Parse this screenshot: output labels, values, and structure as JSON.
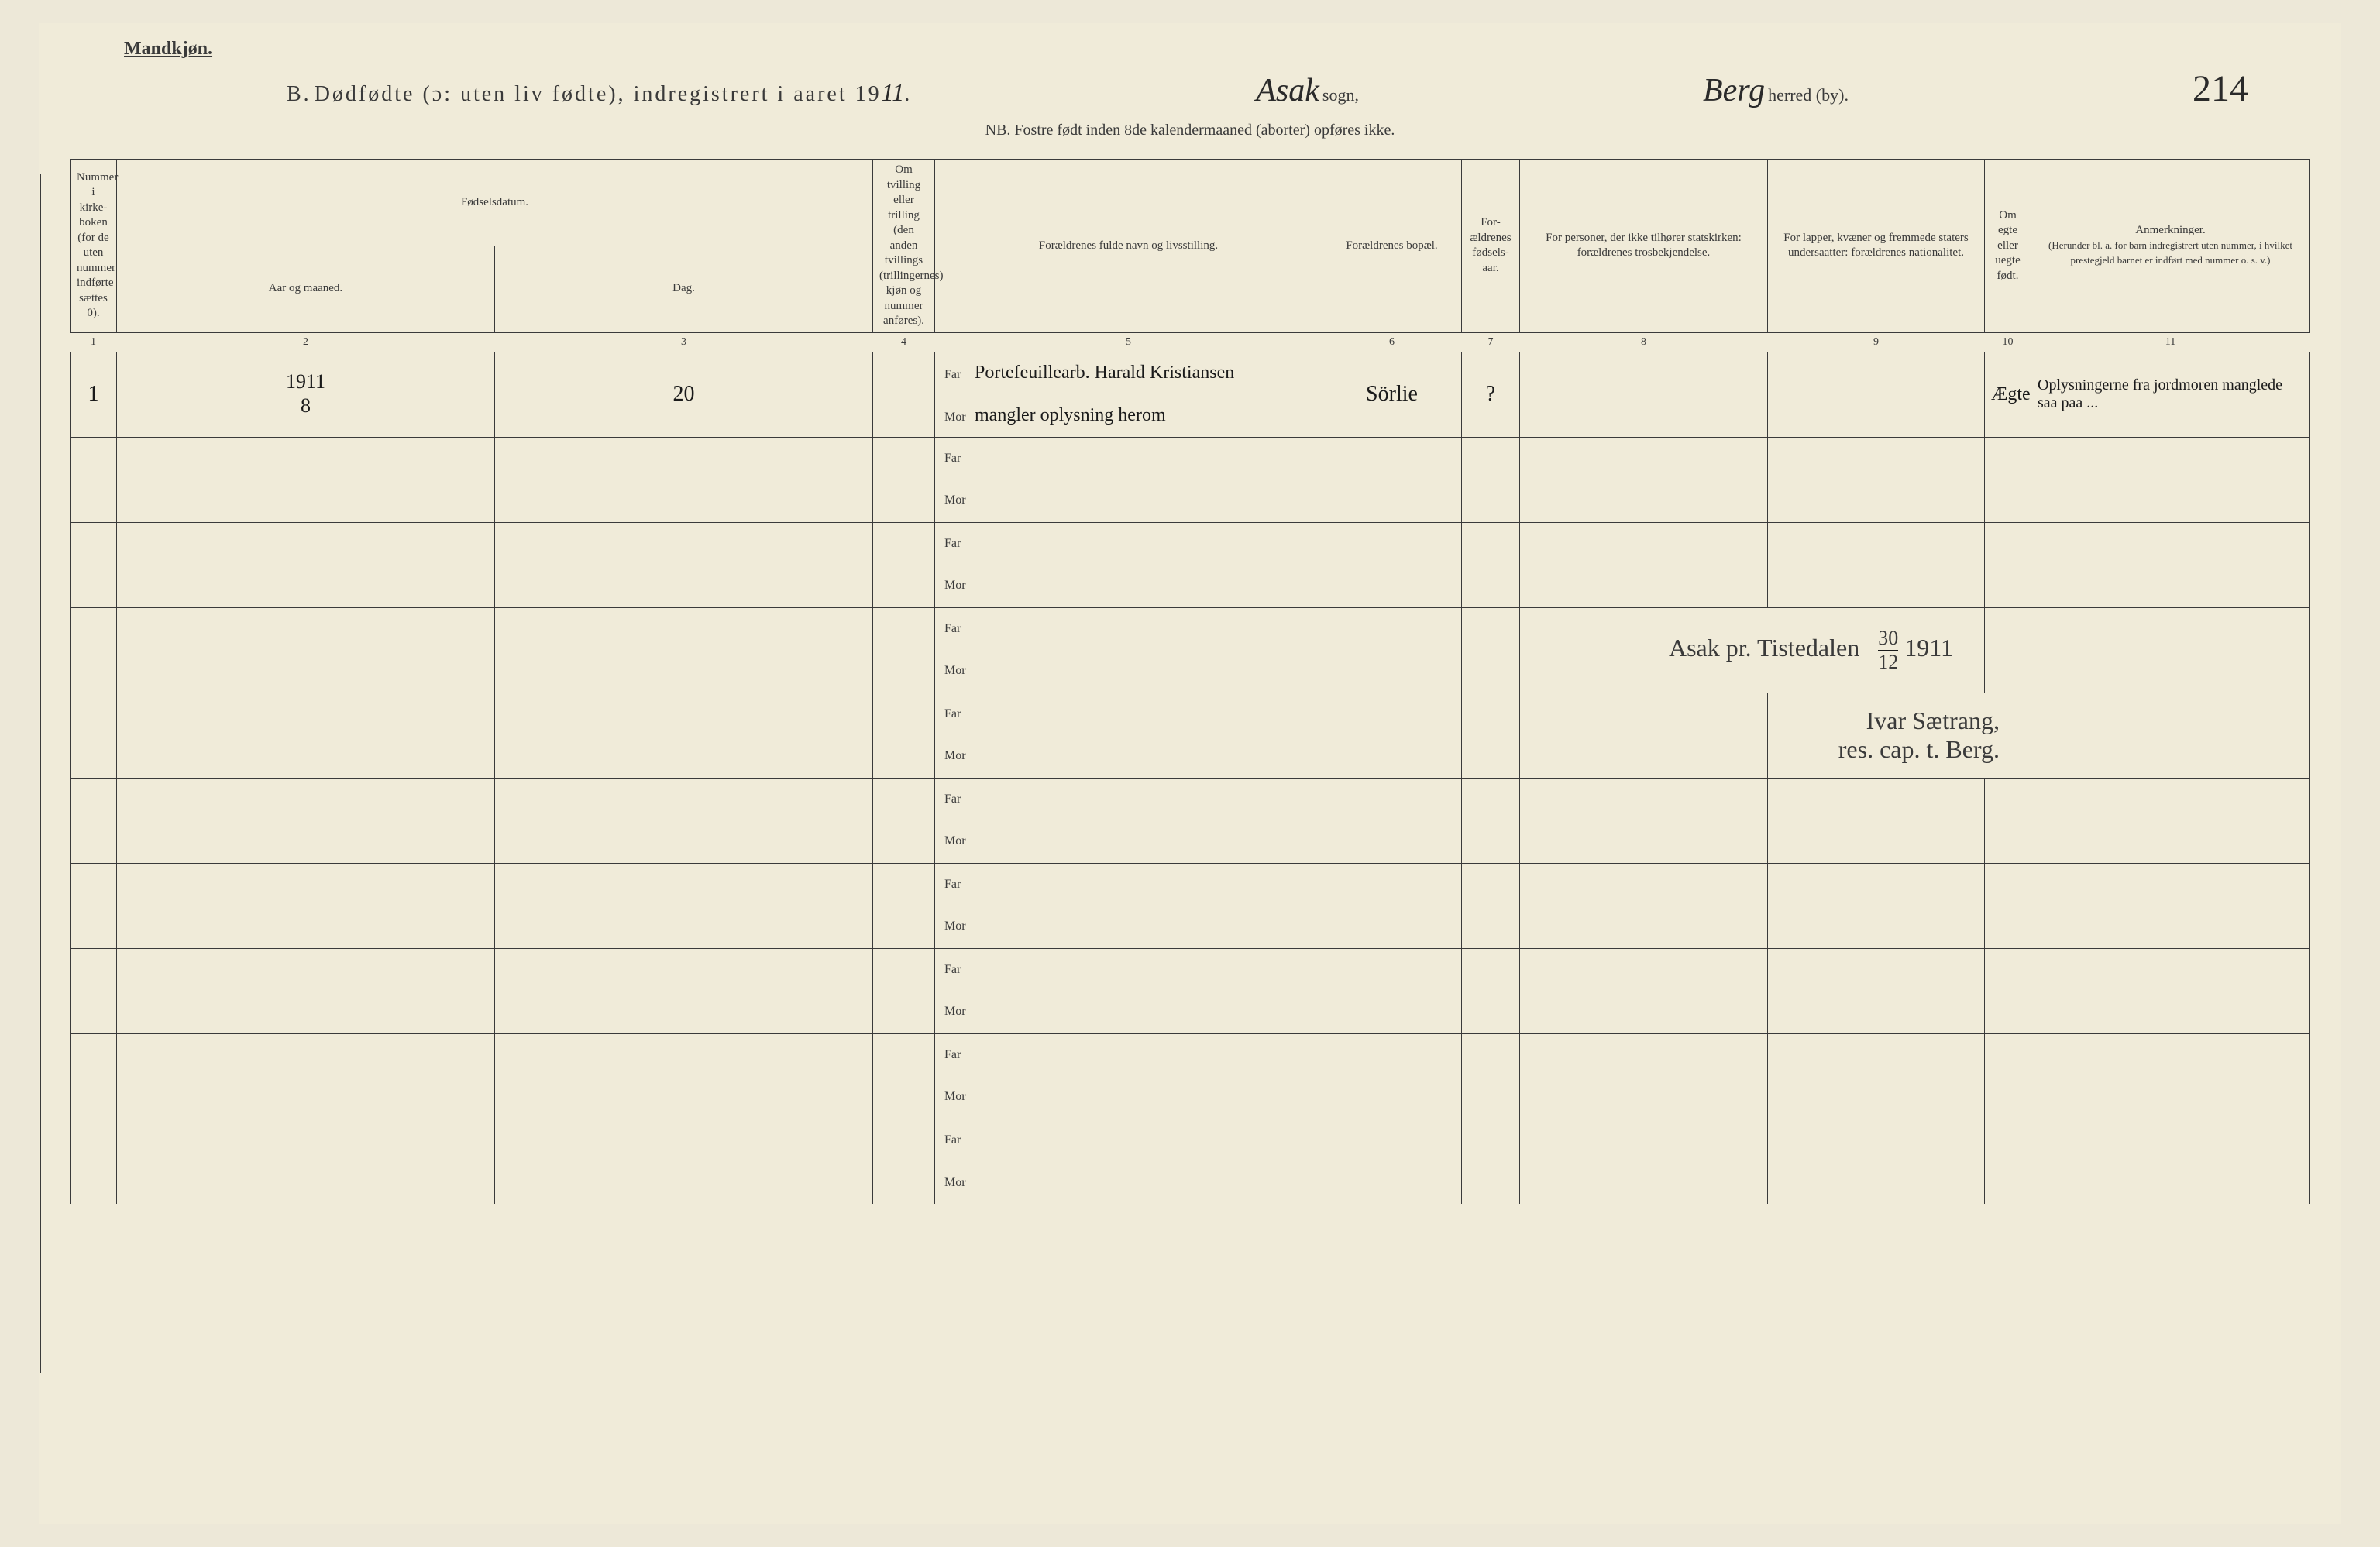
{
  "header": {
    "gender": "Mandkjøn.",
    "title_prefix": "B.",
    "title_main": "Dødfødte (ɔ: uten liv fødte), indregistrert i aaret 19",
    "year_suffix": "11",
    "sogn_label": "sogn,",
    "sogn_value": "Asak",
    "herred_label": "herred (by).",
    "herred_value": "Berg",
    "page_number": "214",
    "note": "NB. Fostre født inden 8de kalendermaaned (aborter) opføres ikke."
  },
  "columns": {
    "c1": "Nummer i kirke-boken (for de uten nummer indførte sættes 0).",
    "c2_header": "Fødselsdatum.",
    "c2a": "Aar og maaned.",
    "c2b": "Dag.",
    "c4": "Om tvilling eller trilling (den anden tvillings (trillingernes) kjøn og nummer anføres).",
    "c5": "Forældrenes fulde navn og livsstilling.",
    "c6": "Forældrenes bopæl.",
    "c7": "For-ældrenes fødsels-aar.",
    "c8": "For personer, der ikke tilhører statskirken: forældrenes trosbekjendelse.",
    "c9": "For lapper, kvæner og fremmede staters undersaatter: forældrenes nationalitet.",
    "c10": "Om egte eller uegte født.",
    "c11": "Anmerkninger.",
    "c11_sub": "(Herunder bl. a. for barn indregistrert uten nummer, i hvilket prestegjeld barnet er indført med nummer o. s. v.)"
  },
  "column_numbers": [
    "1",
    "2",
    "3",
    "4",
    "5",
    "6",
    "7",
    "8",
    "9",
    "10",
    "11"
  ],
  "far_label": "Far",
  "mor_label": "Mor",
  "rows": [
    {
      "num": "1",
      "year_month_top": "1911",
      "year_month_bottom": "8",
      "day": "20",
      "twin": "",
      "far_text": "Portefeuillearb. Harald Kristiansen",
      "mor_text": "mangler oplysning herom",
      "bopael": "Sörlie",
      "parent_age": "?",
      "religion": "",
      "nationality": "",
      "egte": "Ægte",
      "anm": "Oplysningerne fra jordmoren manglede saa paa ... "
    }
  ],
  "signature": {
    "place_date_text": "Asak pr. Tistedalen",
    "date_day": "30",
    "date_month": "12",
    "date_year": "1911",
    "signer_name": "Ivar Sætrang,",
    "signer_title": "res. cap. t. Berg."
  },
  "styling": {
    "background_color": "#f0ebd9",
    "text_color": "#3a3a3a",
    "handwriting_color": "#1a1a1a",
    "border_color": "#3a3a3a"
  }
}
